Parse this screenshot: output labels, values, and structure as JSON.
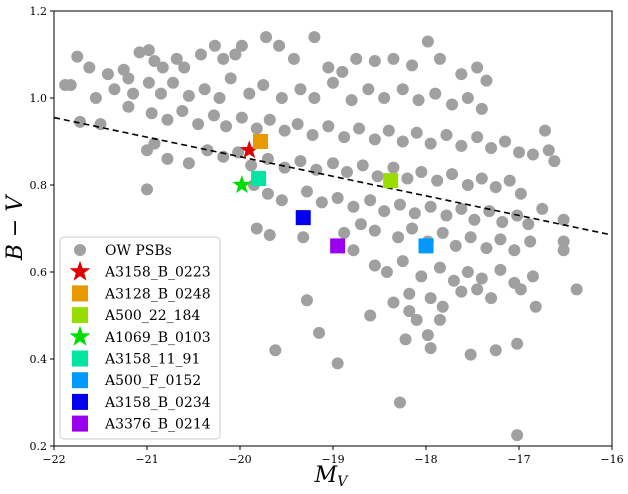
{
  "chart_data": {
    "type": "scatter",
    "xlabel": "M",
    "xlabel_sub": "V",
    "ylabel": "B − V",
    "xlim": [
      -22,
      -16
    ],
    "ylim": [
      0.2,
      1.2
    ],
    "xticks": [
      -22,
      -21,
      -20,
      -19,
      -18,
      -17,
      -16
    ],
    "xtick_labels": [
      "−22",
      "−21",
      "−20",
      "−19",
      "−18",
      "−17",
      "−16"
    ],
    "yticks": [
      0.2,
      0.4,
      0.6,
      0.8,
      1.0,
      1.2
    ],
    "ytick_labels": [
      "0.2",
      "0.4",
      "0.6",
      "0.8",
      "1.0",
      "1.2"
    ],
    "legend_position": "lower-left",
    "fit_line": {
      "style": "dashed",
      "color": "#000000",
      "x": [
        -22,
        -16
      ],
      "y": [
        0.955,
        0.685
      ]
    },
    "background_series": {
      "name": "OW PSBs",
      "marker": "circle",
      "color": "#a0a0a0",
      "points": [
        [
          -21.75,
          1.095
        ],
        [
          -21.62,
          1.07
        ],
        [
          -21.42,
          1.055
        ],
        [
          -21.25,
          1.065
        ],
        [
          -21.2,
          1.045
        ],
        [
          -21.08,
          1.105
        ],
        [
          -20.98,
          1.11
        ],
        [
          -20.92,
          1.085
        ],
        [
          -20.83,
          1.07
        ],
        [
          -20.68,
          1.09
        ],
        [
          -20.6,
          1.07
        ],
        [
          -20.42,
          1.1
        ],
        [
          -20.27,
          1.12
        ],
        [
          -20.18,
          1.09
        ],
        [
          -20.05,
          1.1
        ],
        [
          -19.98,
          1.12
        ],
        [
          -19.72,
          1.14
        ],
        [
          -19.58,
          1.12
        ],
        [
          -19.42,
          1.09
        ],
        [
          -19.2,
          1.14
        ],
        [
          -19.05,
          1.07
        ],
        [
          -18.9,
          1.06
        ],
        [
          -18.75,
          1.09
        ],
        [
          -18.55,
          1.085
        ],
        [
          -18.35,
          1.09
        ],
        [
          -18.15,
          1.075
        ],
        [
          -17.98,
          1.13
        ],
        [
          -17.85,
          1.09
        ],
        [
          -17.62,
          1.055
        ],
        [
          -17.45,
          1.07
        ],
        [
          -17.35,
          1.04
        ],
        [
          -21.82,
          1.03
        ],
        [
          -21.55,
          1.0
        ],
        [
          -21.35,
          1.02
        ],
        [
          -21.15,
          1.01
        ],
        [
          -20.98,
          1.035
        ],
        [
          -20.85,
          1.01
        ],
        [
          -20.72,
          1.035
        ],
        [
          -20.55,
          1.005
        ],
        [
          -20.38,
          1.02
        ],
        [
          -20.22,
          1.0
        ],
        [
          -20.1,
          1.045
        ],
        [
          -19.9,
          1.01
        ],
        [
          -19.75,
          1.03
        ],
        [
          -19.55,
          1.0
        ],
        [
          -19.35,
          1.02
        ],
        [
          -19.2,
          1.0
        ],
        [
          -19.0,
          1.035
        ],
        [
          -18.8,
          0.995
        ],
        [
          -18.62,
          1.02
        ],
        [
          -18.45,
          1.0
        ],
        [
          -18.25,
          1.02
        ],
        [
          -18.08,
          0.995
        ],
        [
          -17.9,
          1.01
        ],
        [
          -17.72,
          0.985
        ],
        [
          -17.55,
          1.0
        ],
        [
          -17.4,
          0.975
        ],
        [
          -21.2,
          0.98
        ],
        [
          -20.95,
          0.965
        ],
        [
          -20.78,
          0.95
        ],
        [
          -20.62,
          0.97
        ],
        [
          -20.45,
          0.94
        ],
        [
          -20.28,
          0.96
        ],
        [
          -20.15,
          0.935
        ],
        [
          -19.98,
          0.955
        ],
        [
          -19.82,
          0.93
        ],
        [
          -19.68,
          0.95
        ],
        [
          -19.52,
          0.925
        ],
        [
          -19.38,
          0.94
        ],
        [
          -19.22,
          0.915
        ],
        [
          -19.05,
          0.935
        ],
        [
          -18.88,
          0.91
        ],
        [
          -18.72,
          0.93
        ],
        [
          -18.55,
          0.905
        ],
        [
          -18.4,
          0.925
        ],
        [
          -18.25,
          0.9
        ],
        [
          -18.1,
          0.92
        ],
        [
          -17.95,
          0.895
        ],
        [
          -17.78,
          0.915
        ],
        [
          -17.62,
          0.89
        ],
        [
          -17.45,
          0.91
        ],
        [
          -17.3,
          0.885
        ],
        [
          -17.15,
          0.9
        ],
        [
          -17.0,
          0.875
        ],
        [
          -16.85,
          0.87
        ],
        [
          -16.72,
          0.925
        ],
        [
          -16.68,
          0.88
        ],
        [
          -16.62,
          0.855
        ],
        [
          -21.88,
          1.03
        ],
        [
          -21.72,
          0.945
        ],
        [
          -21.5,
          0.94
        ],
        [
          -21.0,
          0.88
        ],
        [
          -20.92,
          0.895
        ],
        [
          -20.78,
          0.86
        ],
        [
          -20.55,
          0.85
        ],
        [
          -20.35,
          0.88
        ],
        [
          -20.18,
          0.865
        ],
        [
          -20.02,
          0.875
        ],
        [
          -19.88,
          0.845
        ],
        [
          -19.7,
          0.86
        ],
        [
          -19.52,
          0.84
        ],
        [
          -19.35,
          0.855
        ],
        [
          -19.18,
          0.835
        ],
        [
          -19.0,
          0.85
        ],
        [
          -18.85,
          0.83
        ],
        [
          -18.68,
          0.845
        ],
        [
          -18.52,
          0.82
        ],
        [
          -18.35,
          0.84
        ],
        [
          -18.2,
          0.815
        ],
        [
          -18.05,
          0.83
        ],
        [
          -17.88,
          0.81
        ],
        [
          -17.72,
          0.825
        ],
        [
          -17.55,
          0.8
        ],
        [
          -17.4,
          0.815
        ],
        [
          -17.25,
          0.795
        ],
        [
          -17.1,
          0.81
        ],
        [
          -16.98,
          0.78
        ],
        [
          -21.0,
          0.79
        ],
        [
          -19.85,
          0.8
        ],
        [
          -19.7,
          0.78
        ],
        [
          -19.55,
          0.765
        ],
        [
          -19.28,
          0.785
        ],
        [
          -19.12,
          0.76
        ],
        [
          -18.95,
          0.77
        ],
        [
          -18.78,
          0.75
        ],
        [
          -18.6,
          0.765
        ],
        [
          -18.45,
          0.74
        ],
        [
          -18.28,
          0.755
        ],
        [
          -18.12,
          0.735
        ],
        [
          -17.95,
          0.75
        ],
        [
          -17.78,
          0.73
        ],
        [
          -17.62,
          0.745
        ],
        [
          -17.48,
          0.72
        ],
        [
          -17.32,
          0.74
        ],
        [
          -17.18,
          0.715
        ],
        [
          -17.02,
          0.73
        ],
        [
          -16.9,
          0.71
        ],
        [
          -16.75,
          0.745
        ],
        [
          -16.52,
          0.72
        ],
        [
          -19.82,
          0.7
        ],
        [
          -19.68,
          0.685
        ],
        [
          -19.32,
          0.68
        ],
        [
          -18.88,
          0.69
        ],
        [
          -18.7,
          0.71
        ],
        [
          -18.55,
          0.695
        ],
        [
          -18.3,
          0.68
        ],
        [
          -18.15,
          0.7
        ],
        [
          -17.98,
          0.67
        ],
        [
          -17.82,
          0.69
        ],
        [
          -17.68,
          0.66
        ],
        [
          -17.52,
          0.68
        ],
        [
          -17.35,
          0.655
        ],
        [
          -17.2,
          0.675
        ],
        [
          -17.05,
          0.65
        ],
        [
          -16.88,
          0.67
        ],
        [
          -16.52,
          0.67
        ],
        [
          -16.52,
          0.65
        ],
        [
          -18.78,
          0.65
        ],
        [
          -18.55,
          0.615
        ],
        [
          -18.42,
          0.6
        ],
        [
          -18.25,
          0.625
        ],
        [
          -18.05,
          0.59
        ],
        [
          -17.85,
          0.61
        ],
        [
          -17.7,
          0.58
        ],
        [
          -17.55,
          0.6
        ],
        [
          -17.4,
          0.585
        ],
        [
          -17.2,
          0.605
        ],
        [
          -17.05,
          0.575
        ],
        [
          -16.85,
          0.59
        ],
        [
          -19.28,
          0.535
        ],
        [
          -18.6,
          0.5
        ],
        [
          -18.35,
          0.53
        ],
        [
          -18.18,
          0.55
        ],
        [
          -17.95,
          0.54
        ],
        [
          -17.82,
          0.52
        ],
        [
          -17.62,
          0.555
        ],
        [
          -17.45,
          0.56
        ],
        [
          -17.3,
          0.54
        ],
        [
          -16.98,
          0.56
        ],
        [
          -16.82,
          0.52
        ],
        [
          -16.38,
          0.56
        ],
        [
          -18.18,
          0.51
        ],
        [
          -18.1,
          0.49
        ],
        [
          -17.98,
          0.455
        ],
        [
          -17.85,
          0.49
        ],
        [
          -18.22,
          0.445
        ],
        [
          -19.15,
          0.46
        ],
        [
          -17.95,
          0.425
        ],
        [
          -17.52,
          0.41
        ],
        [
          -17.25,
          0.42
        ],
        [
          -17.02,
          0.435
        ],
        [
          -19.62,
          0.42
        ],
        [
          -18.95,
          0.39
        ],
        [
          -18.28,
          0.3
        ],
        [
          -17.02,
          0.225
        ]
      ]
    },
    "highlight_series": [
      {
        "name": "A3158_B_0223",
        "marker": "star",
        "color": "#dd0000",
        "x": -19.9,
        "y": 0.88
      },
      {
        "name": "A3128_B_0248",
        "marker": "square",
        "color": "#e69a00",
        "x": -19.78,
        "y": 0.9
      },
      {
        "name": "A500_22_184",
        "marker": "square",
        "color": "#99dd00",
        "x": -18.38,
        "y": 0.81
      },
      {
        "name": "A1069_B_0103",
        "marker": "star",
        "color": "#00dd00",
        "x": -19.98,
        "y": 0.8
      },
      {
        "name": "A3158_11_91",
        "marker": "square",
        "color": "#00e6a0",
        "x": -19.8,
        "y": 0.815
      },
      {
        "name": "A500_F_0152",
        "marker": "square",
        "color": "#0099ff",
        "x": -18.0,
        "y": 0.66
      },
      {
        "name": "A3158_B_0234",
        "marker": "square",
        "color": "#0000ee",
        "x": -19.32,
        "y": 0.725
      },
      {
        "name": "A3376_B_0214",
        "marker": "square",
        "color": "#9900ee",
        "x": -18.95,
        "y": 0.66
      }
    ]
  }
}
